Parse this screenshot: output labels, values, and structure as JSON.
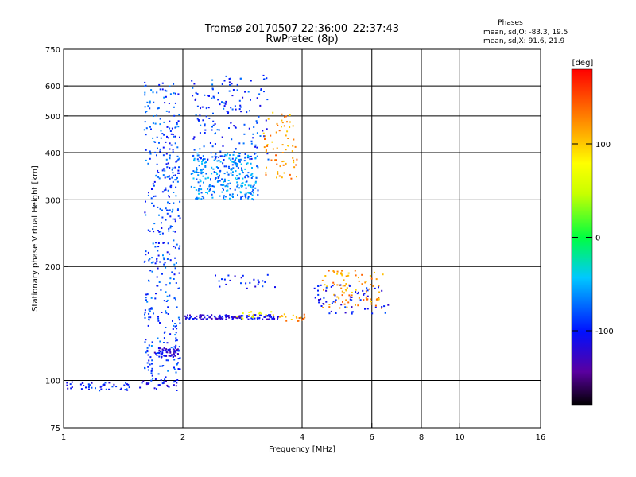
{
  "chart_data": {
    "type": "scatter",
    "title": "Tromsø 20170507 22:36:00–22:37:43",
    "subtitle": "RwPretec (8p)",
    "stats": {
      "header": "Phases",
      "line1": "mean, sd,O: -83.3, 19.5",
      "line2": "mean, sd,X:  91.6, 21.9"
    },
    "xlabel": "Frequency [MHz]",
    "ylabel": "Stationary phase Virtual Height [km]",
    "x_scale": "log",
    "y_scale": "log",
    "xlim": [
      1,
      16
    ],
    "ylim": [
      75,
      750
    ],
    "x_ticks": [
      1,
      2,
      4,
      6,
      8,
      10,
      16
    ],
    "x_tick_labels": [
      "1",
      "2",
      "4",
      "6",
      "8",
      "10",
      "16"
    ],
    "x_grid_lines": [
      2,
      4,
      6,
      8,
      10
    ],
    "y_ticks": [
      75,
      100,
      200,
      300,
      400,
      500,
      600,
      750
    ],
    "y_tick_labels": [
      "75",
      "100",
      "200",
      "300",
      "400",
      "500",
      "600",
      "750"
    ],
    "y_grid_lines": [
      100,
      200,
      300,
      400,
      500,
      600
    ],
    "grid": true,
    "colorbar": {
      "label": "[deg]",
      "range": [
        -180,
        180
      ],
      "ticks": [
        100,
        0,
        -100
      ],
      "tick_labels": [
        "100",
        "0",
        "-100"
      ],
      "colormap": "rainbow"
    },
    "clusters": [
      {
        "f_range": [
          1.02,
          1.5
        ],
        "h_range": [
          94,
          99
        ],
        "phase": -100,
        "n": 45
      },
      {
        "f_range": [
          1.55,
          1.95
        ],
        "h_range": [
          94,
          100
        ],
        "phase": -110,
        "n": 25
      },
      {
        "f_range": [
          1.6,
          1.97
        ],
        "h_range": [
          100,
          620
        ],
        "phase": -85,
        "n": 420
      },
      {
        "f_range": [
          1.7,
          1.95
        ],
        "h_range": [
          115,
          122
        ],
        "phase": -120,
        "n": 50
      },
      {
        "f_range": [
          2.1,
          3.1
        ],
        "h_range": [
          300,
          400
        ],
        "phase": -65,
        "n": 280
      },
      {
        "f_range": [
          2.1,
          3.3
        ],
        "h_range": [
          380,
          640
        ],
        "phase": -90,
        "n": 170
      },
      {
        "f_range": [
          3.2,
          3.9
        ],
        "h_range": [
          340,
          520
        ],
        "phase": 120,
        "n": 70
      },
      {
        "f_range": [
          2.0,
          3.5
        ],
        "h_range": [
          145,
          149
        ],
        "phase": -115,
        "n": 130
      },
      {
        "f_range": [
          2.7,
          3.5
        ],
        "h_range": [
          145,
          152
        ],
        "phase": 80,
        "n": 20
      },
      {
        "f_range": [
          3.5,
          4.1
        ],
        "h_range": [
          143,
          150
        ],
        "phase": 120,
        "n": 20
      },
      {
        "f_range": [
          2.4,
          3.5
        ],
        "h_range": [
          175,
          190
        ],
        "phase": -100,
        "n": 25
      },
      {
        "f_range": [
          4.5,
          6.4
        ],
        "h_range": [
          155,
          195
        ],
        "phase": 120,
        "n": 90
      },
      {
        "f_range": [
          4.3,
          6.6
        ],
        "h_range": [
          150,
          180
        ],
        "phase": -105,
        "n": 60
      }
    ]
  }
}
